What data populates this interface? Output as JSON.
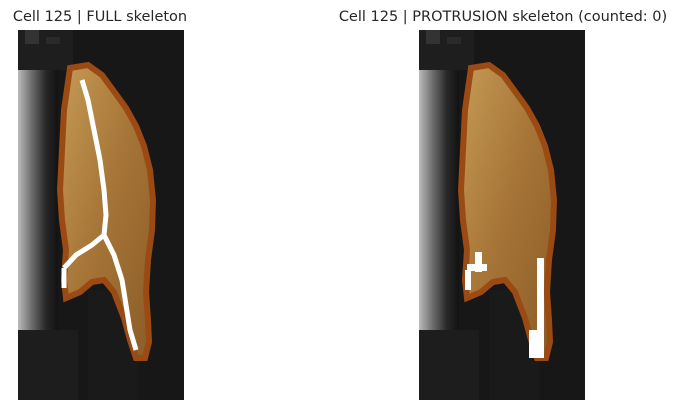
{
  "panels": [
    {
      "title": "Cell 125 | FULL skeleton",
      "skeleton": "full"
    },
    {
      "title": "Cell 125 | PROTRUSION skeleton (counted: 0)",
      "skeleton": "protrusion"
    }
  ],
  "colors": {
    "background": "#ffffff",
    "image_dark": "#0a0a0a",
    "cell_fill": "#b0803f",
    "cell_outline": "#9c4a14",
    "skeleton": "#ffffff"
  }
}
